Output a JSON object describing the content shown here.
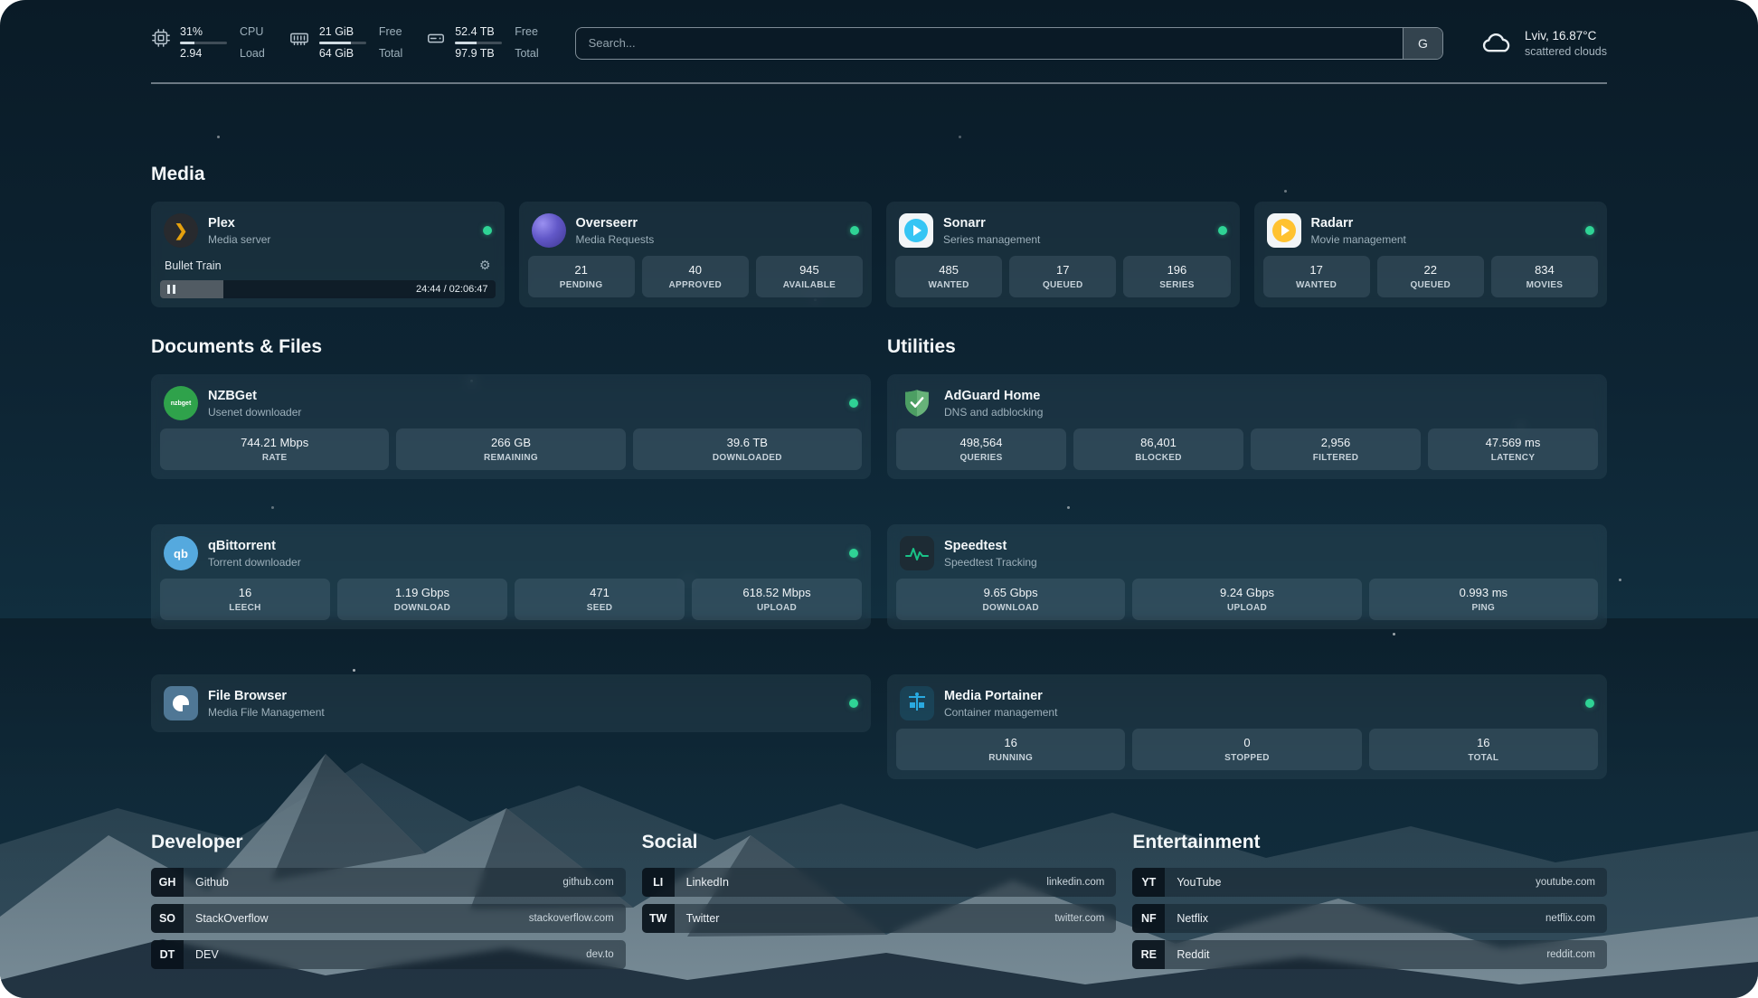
{
  "header": {
    "widgets": [
      {
        "icon": "cpu-icon",
        "value_top": "31%",
        "value_bottom": "2.94",
        "label_top": "CPU",
        "label_bottom": "Load",
        "bar_pct": 31
      },
      {
        "icon": "memory-icon",
        "value_top": "21 GiB",
        "value_bottom": "64 GiB",
        "label_top": "Free",
        "label_bottom": "Total",
        "bar_pct": 67
      },
      {
        "icon": "disk-icon",
        "value_top": "52.4 TB",
        "value_bottom": "97.9 TB",
        "label_top": "Free",
        "label_bottom": "Total",
        "bar_pct": 46
      }
    ],
    "search": {
      "placeholder": "Search...",
      "button_label": "G"
    },
    "weather": {
      "icon": "cloud-icon",
      "location": "Lviv, 16.87°C",
      "condition": "scattered clouds"
    }
  },
  "icons": {
    "gear": "⚙"
  },
  "media": {
    "title": "Media",
    "plex": {
      "name": "Plex",
      "subtitle": "Media server",
      "now_playing": "Bullet Train",
      "time": "24:44 / 02:06:47",
      "progress_pct": 19,
      "status": "online"
    },
    "overseerr": {
      "name": "Overseerr",
      "subtitle": "Media Requests",
      "status": "online",
      "stats": [
        {
          "value": "21",
          "label": "PENDING"
        },
        {
          "value": "40",
          "label": "APPROVED"
        },
        {
          "value": "945",
          "label": "AVAILABLE"
        }
      ]
    },
    "sonarr": {
      "name": "Sonarr",
      "subtitle": "Series management",
      "status": "online",
      "stats": [
        {
          "value": "485",
          "label": "WANTED"
        },
        {
          "value": "17",
          "label": "QUEUED"
        },
        {
          "value": "196",
          "label": "SERIES"
        }
      ]
    },
    "radarr": {
      "name": "Radarr",
      "subtitle": "Movie management",
      "status": "online",
      "stats": [
        {
          "value": "17",
          "label": "WANTED"
        },
        {
          "value": "22",
          "label": "QUEUED"
        },
        {
          "value": "834",
          "label": "MOVIES"
        }
      ]
    }
  },
  "documents": {
    "title": "Documents & Files",
    "nzbget": {
      "name": "NZBGet",
      "subtitle": "Usenet downloader",
      "status": "online",
      "icon_text": "nzbget",
      "stats": [
        {
          "value": "744.21 Mbps",
          "label": "RATE"
        },
        {
          "value": "266 GB",
          "label": "REMAINING"
        },
        {
          "value": "39.6 TB",
          "label": "DOWNLOADED"
        }
      ]
    },
    "qbittorrent": {
      "name": "qBittorrent",
      "subtitle": "Torrent downloader",
      "status": "online",
      "icon_text": "qb",
      "stats": [
        {
          "value": "16",
          "label": "LEECH"
        },
        {
          "value": "1.19 Gbps",
          "label": "DOWNLOAD"
        },
        {
          "value": "471",
          "label": "SEED"
        },
        {
          "value": "618.52 Mbps",
          "label": "UPLOAD"
        }
      ]
    },
    "filebrowser": {
      "name": "File Browser",
      "subtitle": "Media File Management",
      "status": "online"
    }
  },
  "utilities": {
    "title": "Utilities",
    "adguard": {
      "name": "AdGuard Home",
      "subtitle": "DNS and adblocking",
      "stats": [
        {
          "value": "498,564",
          "label": "QUERIES"
        },
        {
          "value": "86,401",
          "label": "BLOCKED"
        },
        {
          "value": "2,956",
          "label": "FILTERED"
        },
        {
          "value": "47.569 ms",
          "label": "LATENCY"
        }
      ]
    },
    "speedtest": {
      "name": "Speedtest",
      "subtitle": "Speedtest Tracking",
      "stats": [
        {
          "value": "9.65 Gbps",
          "label": "DOWNLOAD"
        },
        {
          "value": "9.24 Gbps",
          "label": "UPLOAD"
        },
        {
          "value": "0.993 ms",
          "label": "PING"
        }
      ]
    },
    "portainer": {
      "name": "Media Portainer",
      "subtitle": "Container management",
      "status": "online",
      "stats": [
        {
          "value": "16",
          "label": "RUNNING"
        },
        {
          "value": "0",
          "label": "STOPPED"
        },
        {
          "value": "16",
          "label": "TOTAL"
        }
      ]
    }
  },
  "bookmarks": {
    "developer": {
      "title": "Developer",
      "items": [
        {
          "abbr": "GH",
          "name": "Github",
          "url": "github.com"
        },
        {
          "abbr": "SO",
          "name": "StackOverflow",
          "url": "stackoverflow.com"
        },
        {
          "abbr": "DT",
          "name": "DEV",
          "url": "dev.to"
        }
      ]
    },
    "social": {
      "title": "Social",
      "items": [
        {
          "abbr": "LI",
          "name": "LinkedIn",
          "url": "linkedin.com"
        },
        {
          "abbr": "TW",
          "name": "Twitter",
          "url": "twitter.com"
        }
      ]
    },
    "entertainment": {
      "title": "Entertainment",
      "items": [
        {
          "abbr": "YT",
          "name": "YouTube",
          "url": "youtube.com"
        },
        {
          "abbr": "NF",
          "name": "Netflix",
          "url": "netflix.com"
        },
        {
          "abbr": "RE",
          "name": "Reddit",
          "url": "reddit.com"
        }
      ]
    }
  },
  "colors": {
    "status_online": "#2fd395",
    "plex_accent": "#e5a00d",
    "sonarr_blue": "#35c5f4",
    "radarr_amber": "#ffc230",
    "adguard_green": "#67b279",
    "speedtest_green": "#19c287",
    "portainer_blue": "#29a9e0"
  }
}
